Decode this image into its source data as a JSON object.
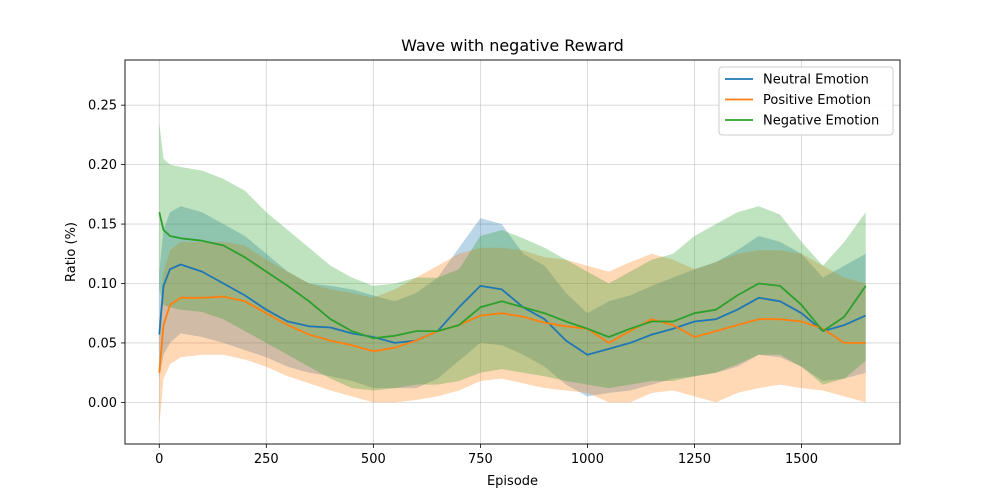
{
  "chart_data": {
    "type": "line",
    "title": "Wave with negative Reward",
    "xlabel": "Episode",
    "ylabel": "Ratio (%)",
    "xlim": [
      -80,
      1730
    ],
    "ylim": [
      -0.035,
      0.288
    ],
    "xticks": [
      0,
      250,
      500,
      750,
      1000,
      1250,
      1500
    ],
    "yticks": [
      0.0,
      0.05,
      0.1,
      0.15,
      0.2,
      0.25
    ],
    "xtick_labels": [
      "0",
      "250",
      "500",
      "750",
      "1000",
      "1250",
      "1500"
    ],
    "ytick_labels": [
      "0.00",
      "0.05",
      "0.10",
      "0.15",
      "0.20",
      "0.25"
    ],
    "grid": true,
    "legend_position": "top-right",
    "bands": "mean ± std shaded area per series",
    "x": [
      0,
      10,
      25,
      50,
      100,
      150,
      200,
      250,
      300,
      350,
      400,
      450,
      500,
      550,
      600,
      650,
      700,
      750,
      800,
      850,
      900,
      950,
      1000,
      1050,
      1100,
      1150,
      1200,
      1250,
      1300,
      1350,
      1400,
      1450,
      1500,
      1550,
      1600,
      1650
    ],
    "series": [
      {
        "name": "Neutral Emotion",
        "color": "#1f77b4",
        "values": [
          0.057,
          0.098,
          0.112,
          0.116,
          0.11,
          0.1,
          0.09,
          0.078,
          0.068,
          0.064,
          0.063,
          0.058,
          0.055,
          0.05,
          0.052,
          0.06,
          0.08,
          0.098,
          0.095,
          0.08,
          0.07,
          0.052,
          0.04,
          0.045,
          0.05,
          0.057,
          0.062,
          0.068,
          0.07,
          0.078,
          0.088,
          0.085,
          0.075,
          0.06,
          0.065,
          0.073
        ],
        "lower": [
          0.02,
          0.04,
          0.05,
          0.058,
          0.055,
          0.05,
          0.044,
          0.038,
          0.03,
          0.025,
          0.022,
          0.018,
          0.012,
          0.012,
          0.012,
          0.02,
          0.035,
          0.05,
          0.048,
          0.04,
          0.03,
          0.015,
          0.005,
          0.008,
          0.01,
          0.015,
          0.02,
          0.022,
          0.025,
          0.03,
          0.04,
          0.038,
          0.03,
          0.018,
          0.02,
          0.025
        ],
        "upper": [
          0.11,
          0.145,
          0.16,
          0.165,
          0.16,
          0.15,
          0.14,
          0.125,
          0.11,
          0.1,
          0.098,
          0.095,
          0.09,
          0.085,
          0.092,
          0.105,
          0.13,
          0.155,
          0.15,
          0.125,
          0.115,
          0.092,
          0.075,
          0.085,
          0.09,
          0.098,
          0.105,
          0.112,
          0.118,
          0.128,
          0.14,
          0.135,
          0.125,
          0.105,
          0.115,
          0.125
        ]
      },
      {
        "name": "Positive Emotion",
        "color": "#ff7f0e",
        "values": [
          0.025,
          0.065,
          0.082,
          0.088,
          0.088,
          0.089,
          0.085,
          0.075,
          0.065,
          0.057,
          0.052,
          0.048,
          0.043,
          0.046,
          0.052,
          0.06,
          0.065,
          0.073,
          0.075,
          0.072,
          0.067,
          0.064,
          0.062,
          0.05,
          0.06,
          0.07,
          0.065,
          0.055,
          0.06,
          0.065,
          0.07,
          0.07,
          0.068,
          0.062,
          0.05,
          0.05
        ],
        "lower": [
          -0.02,
          0.02,
          0.032,
          0.038,
          0.04,
          0.04,
          0.036,
          0.03,
          0.022,
          0.016,
          0.01,
          0.005,
          0.0,
          0.0,
          0.002,
          0.005,
          0.01,
          0.018,
          0.02,
          0.016,
          0.012,
          0.01,
          0.008,
          0.0,
          0.0,
          0.008,
          0.01,
          0.005,
          0.0,
          0.008,
          0.012,
          0.015,
          0.012,
          0.01,
          0.005,
          0.0
        ],
        "upper": [
          0.07,
          0.11,
          0.128,
          0.135,
          0.135,
          0.135,
          0.132,
          0.12,
          0.11,
          0.1,
          0.095,
          0.092,
          0.088,
          0.095,
          0.105,
          0.115,
          0.125,
          0.13,
          0.13,
          0.128,
          0.122,
          0.12,
          0.115,
          0.11,
          0.118,
          0.125,
          0.12,
          0.112,
          0.118,
          0.125,
          0.128,
          0.128,
          0.125,
          0.115,
          0.105,
          0.1
        ]
      },
      {
        "name": "Negative Emotion",
        "color": "#2ca02c",
        "values": [
          0.16,
          0.145,
          0.14,
          0.138,
          0.136,
          0.132,
          0.122,
          0.11,
          0.098,
          0.085,
          0.07,
          0.06,
          0.054,
          0.056,
          0.06,
          0.06,
          0.065,
          0.08,
          0.085,
          0.08,
          0.075,
          0.068,
          0.062,
          0.055,
          0.062,
          0.068,
          0.068,
          0.075,
          0.078,
          0.09,
          0.1,
          0.098,
          0.082,
          0.06,
          0.072,
          0.098
        ],
        "lower": [
          0.095,
          0.082,
          0.08,
          0.078,
          0.076,
          0.07,
          0.06,
          0.05,
          0.04,
          0.03,
          0.02,
          0.012,
          0.01,
          0.012,
          0.015,
          0.015,
          0.018,
          0.025,
          0.028,
          0.025,
          0.022,
          0.018,
          0.015,
          0.012,
          0.015,
          0.018,
          0.018,
          0.022,
          0.025,
          0.032,
          0.04,
          0.04,
          0.03,
          0.015,
          0.02,
          0.035
        ],
        "upper": [
          0.235,
          0.205,
          0.2,
          0.198,
          0.195,
          0.188,
          0.178,
          0.16,
          0.145,
          0.13,
          0.115,
          0.105,
          0.098,
          0.1,
          0.105,
          0.105,
          0.112,
          0.14,
          0.145,
          0.138,
          0.13,
          0.12,
          0.11,
          0.1,
          0.11,
          0.12,
          0.125,
          0.14,
          0.15,
          0.16,
          0.165,
          0.158,
          0.135,
          0.115,
          0.135,
          0.16
        ]
      }
    ]
  }
}
